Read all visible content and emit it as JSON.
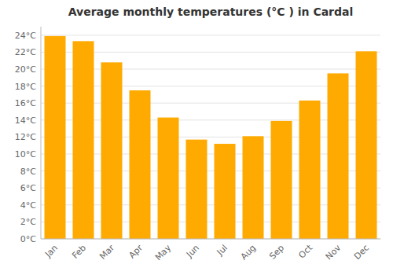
{
  "chart_data": {
    "type": "bar",
    "title": "Average monthly temperatures (°C ) in Cardal",
    "categories": [
      "Jan",
      "Feb",
      "Mar",
      "Apr",
      "May",
      "Jun",
      "Jul",
      "Aug",
      "Sep",
      "Oct",
      "Nov",
      "Dec"
    ],
    "values": [
      23.9,
      23.3,
      20.8,
      17.5,
      14.3,
      11.7,
      11.2,
      12.1,
      13.9,
      16.3,
      19.5,
      22.1
    ],
    "color": "#FFAA00",
    "ylim": [
      0,
      25
    ],
    "yticks": [
      {
        "value": 0,
        "label": "0°C"
      },
      {
        "value": 2,
        "label": "2°C"
      },
      {
        "value": 4,
        "label": "4°C"
      },
      {
        "value": 6,
        "label": "6°C"
      },
      {
        "value": 8,
        "label": "8°C"
      },
      {
        "value": 10,
        "label": "10°C"
      },
      {
        "value": 12,
        "label": "12°C"
      },
      {
        "value": 14,
        "label": "14°C"
      },
      {
        "value": 16,
        "label": "16°C"
      },
      {
        "value": 18,
        "label": "18°C"
      },
      {
        "value": 20,
        "label": "20°C"
      },
      {
        "value": 22,
        "label": "22°C"
      },
      {
        "value": 24,
        "label": "24°C"
      }
    ],
    "grid": true
  }
}
